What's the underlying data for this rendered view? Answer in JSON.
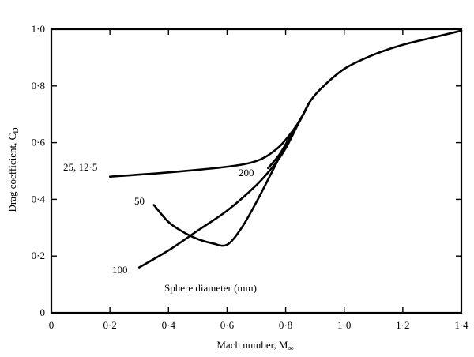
{
  "chart_data": {
    "type": "line",
    "xlabel": "Mach number, M",
    "xlabel_subscript": "∞",
    "ylabel": "Drag coefficient, C",
    "ylabel_subscript": "D",
    "xlim": [
      0,
      1.4
    ],
    "ylim": [
      0,
      1.0
    ],
    "grid": false,
    "x_ticks": [
      0,
      0.2,
      0.4,
      0.6,
      0.8,
      1.0,
      1.2,
      1.4
    ],
    "x_tick_labels": [
      "0",
      "0·2",
      "0·4",
      "0·6",
      "0·8",
      "1·0",
      "1·2",
      "1·4"
    ],
    "y_ticks": [
      0,
      0.2,
      0.4,
      0.6,
      0.8,
      1.0
    ],
    "y_tick_labels": [
      "0",
      "0·2",
      "0·4",
      "0·6",
      "0·8",
      "1·0"
    ],
    "annotation": "Sphere diameter (mm)",
    "series": [
      {
        "name": "25, 12·5",
        "x": [
          0.2,
          0.4,
          0.6,
          0.7,
          0.76,
          0.8,
          0.85,
          0.88,
          0.92,
          1.0,
          1.1,
          1.2,
          1.3,
          1.4
        ],
        "y": [
          0.48,
          0.495,
          0.515,
          0.535,
          0.57,
          0.61,
          0.68,
          0.74,
          0.79,
          0.86,
          0.91,
          0.945,
          0.97,
          0.995
        ]
      },
      {
        "name": "200",
        "x": [
          0.74,
          0.78,
          0.82,
          0.86,
          0.88
        ],
        "y": [
          0.51,
          0.56,
          0.63,
          0.7,
          0.74
        ]
      },
      {
        "name": "50",
        "x": [
          0.35,
          0.4,
          0.45,
          0.5,
          0.55,
          0.6,
          0.65,
          0.7,
          0.75,
          0.8,
          0.85,
          0.88
        ],
        "y": [
          0.38,
          0.32,
          0.285,
          0.26,
          0.245,
          0.24,
          0.3,
          0.39,
          0.49,
          0.59,
          0.68,
          0.74
        ]
      },
      {
        "name": "100",
        "x": [
          0.3,
          0.4,
          0.5,
          0.6,
          0.7,
          0.76,
          0.8,
          0.84,
          0.88
        ],
        "y": [
          0.16,
          0.22,
          0.29,
          0.36,
          0.45,
          0.52,
          0.58,
          0.66,
          0.74
        ]
      }
    ]
  }
}
